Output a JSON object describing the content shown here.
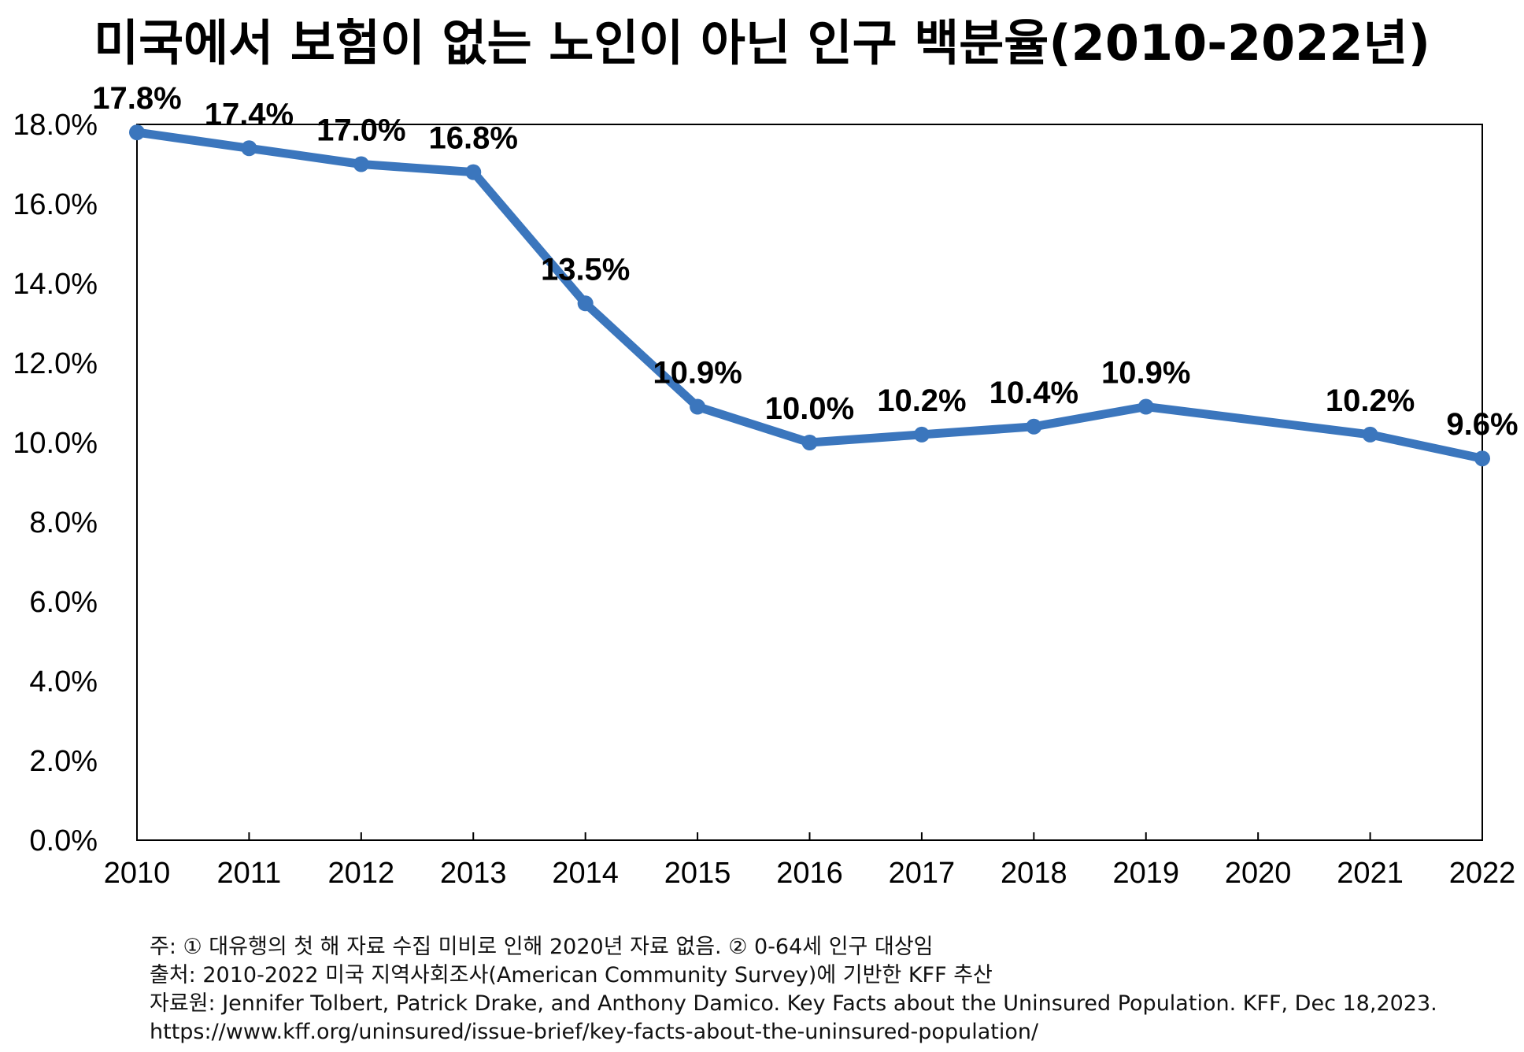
{
  "accent_color": "#3b76bd",
  "chart_data": {
    "type": "line",
    "title": "미국에서 보험이 없는 노인이 아닌 인구 백분율(2010-2022년)",
    "xlabel": "",
    "ylabel": "",
    "x_ticks": [
      "2010",
      "2011",
      "2012",
      "2013",
      "2014",
      "2015",
      "2016",
      "2017",
      "2018",
      "2019",
      "2020",
      "2021",
      "2022"
    ],
    "y_ticks": [
      "0.0%",
      "2.0%",
      "4.0%",
      "6.0%",
      "8.0%",
      "10.0%",
      "12.0%",
      "14.0%",
      "16.0%",
      "18.0%"
    ],
    "xlim": [
      2010,
      2022
    ],
    "ylim": [
      0,
      18
    ],
    "grid": false,
    "series": [
      {
        "color": "#3b76bd",
        "points": [
          {
            "x": 2010,
            "y": 17.8,
            "label": "17.8%"
          },
          {
            "x": 2011,
            "y": 17.4,
            "label": "17.4%"
          },
          {
            "x": 2012,
            "y": 17.0,
            "label": "17.0%"
          },
          {
            "x": 2013,
            "y": 16.8,
            "label": "16.8%"
          },
          {
            "x": 2014,
            "y": 13.5,
            "label": "13.5%"
          },
          {
            "x": 2015,
            "y": 10.9,
            "label": "10.9%"
          },
          {
            "x": 2016,
            "y": 10.0,
            "label": "10.0%"
          },
          {
            "x": 2017,
            "y": 10.2,
            "label": "10.2%"
          },
          {
            "x": 2018,
            "y": 10.4,
            "label": "10.4%"
          },
          {
            "x": 2019,
            "y": 10.9,
            "label": "10.9%"
          },
          {
            "x": 2021,
            "y": 10.2,
            "label": "10.2%"
          },
          {
            "x": 2022,
            "y": 9.6,
            "label": "9.6%"
          }
        ]
      }
    ]
  },
  "notes": {
    "note": "주: ① 대유행의 첫 해 자료 수집 미비로 인해 2020년 자료 없음. ② 0-64세 인구 대상임",
    "source": "출처: 2010-2022 미국 지역사회조사(American Community Survey)에 기반한 KFF 추산",
    "reference": "자료원: Jennifer Tolbert, Patrick Drake, and Anthony Damico. Key Facts about the Uninsured Population. KFF, Dec 18,2023.",
    "url": "https://www.kff.org/uninsured/issue-brief/key-facts-about-the-uninsured-population/"
  }
}
